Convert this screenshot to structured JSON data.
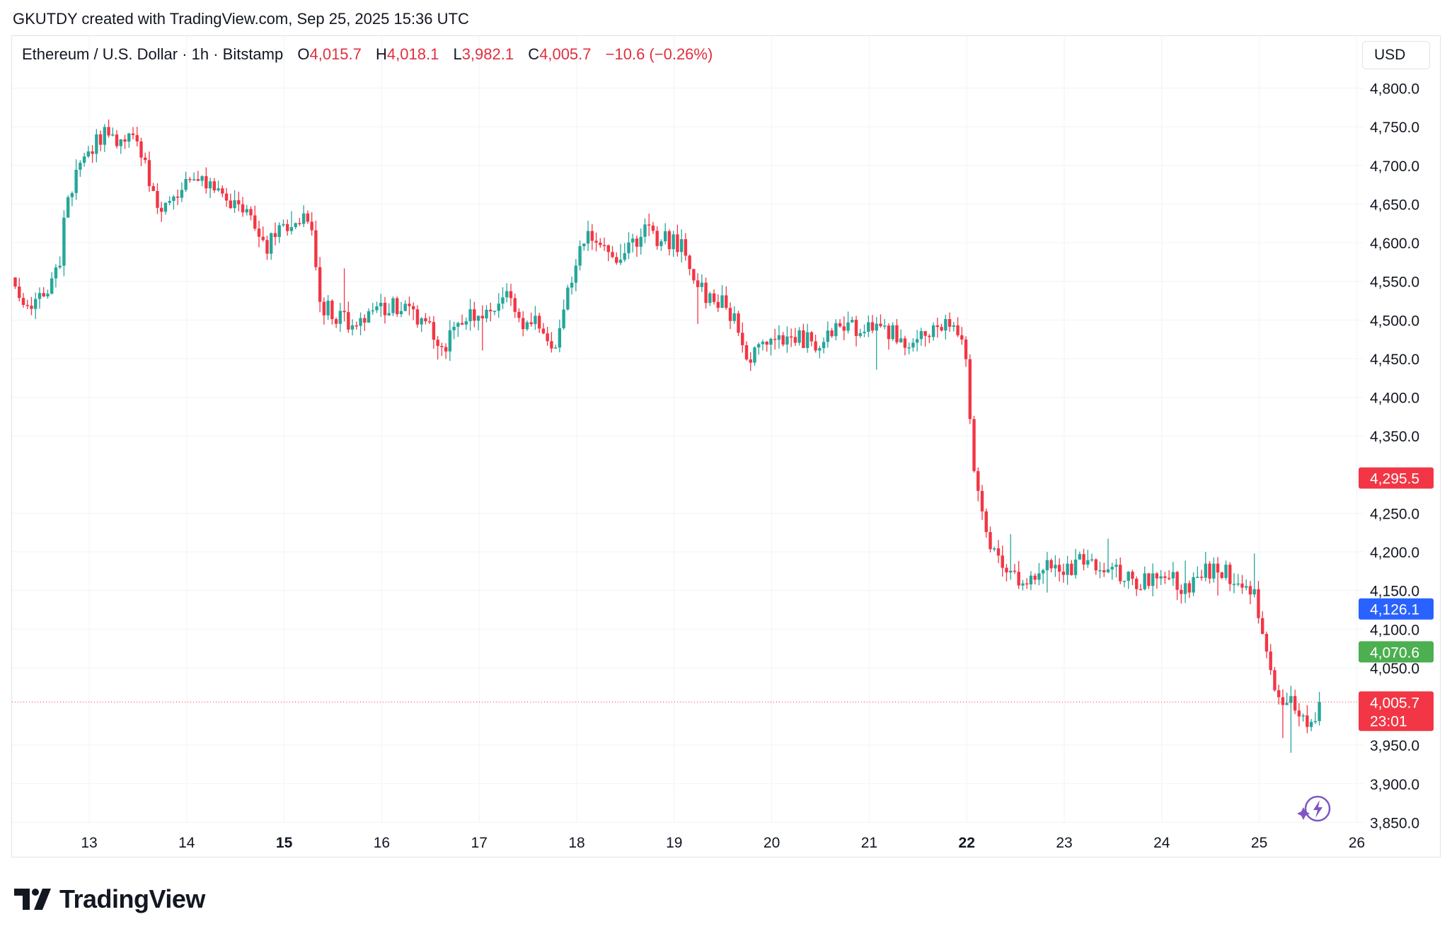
{
  "header": {
    "credit": "GKUTDY created with TradingView.com, Sep 25, 2025 15:36 UTC"
  },
  "legend": {
    "symbol": "Ethereum / U.S. Dollar · 1h · Bitstamp",
    "o_label": "O",
    "o_value": "4,015.7",
    "h_label": "H",
    "h_value": "4,018.1",
    "l_label": "L",
    "l_value": "3,982.1",
    "c_label": "C",
    "c_value": "4,005.7",
    "change": "−10.6 (−0.26%)"
  },
  "axis": {
    "currency": "USD"
  },
  "colors": {
    "up": "#26a69a",
    "down": "#f23645",
    "grid": "#f0f3fa",
    "axis_text": "#131722",
    "badge_red": "#f23645",
    "badge_blue": "#2962ff",
    "badge_green": "#4caf50"
  },
  "chart_data": {
    "type": "candlestick",
    "interval": "1h",
    "ylim": [
      3850,
      4830
    ],
    "y_ticks": [
      {
        "value": 4800,
        "label": "4,800.0"
      },
      {
        "value": 4750,
        "label": "4,750.0"
      },
      {
        "value": 4700,
        "label": "4,700.0"
      },
      {
        "value": 4650,
        "label": "4,650.0"
      },
      {
        "value": 4600,
        "label": "4,600.0"
      },
      {
        "value": 4550,
        "label": "4,550.0"
      },
      {
        "value": 4500,
        "label": "4,500.0"
      },
      {
        "value": 4450,
        "label": "4,450.0"
      },
      {
        "value": 4400,
        "label": "4,400.0"
      },
      {
        "value": 4350,
        "label": "4,350.0"
      },
      {
        "value": 4250,
        "label": "4,250.0"
      },
      {
        "value": 4200,
        "label": "4,200.0"
      },
      {
        "value": 4150,
        "label": "4,150.0"
      },
      {
        "value": 4100,
        "label": "4,100.0"
      },
      {
        "value": 4050,
        "label": "4,050.0"
      },
      {
        "value": 3950,
        "label": "3,950.0"
      },
      {
        "value": 3900,
        "label": "3,900.0"
      },
      {
        "value": 3850,
        "label": "3,850.0"
      }
    ],
    "x_ticks": [
      {
        "day": 13,
        "label": "13",
        "bold": false
      },
      {
        "day": 14,
        "label": "14",
        "bold": false
      },
      {
        "day": 15,
        "label": "15",
        "bold": true
      },
      {
        "day": 16,
        "label": "16",
        "bold": false
      },
      {
        "day": 17,
        "label": "17",
        "bold": false
      },
      {
        "day": 18,
        "label": "18",
        "bold": false
      },
      {
        "day": 19,
        "label": "19",
        "bold": false
      },
      {
        "day": 20,
        "label": "20",
        "bold": false
      },
      {
        "day": 21,
        "label": "21",
        "bold": false
      },
      {
        "day": 22,
        "label": "22",
        "bold": true
      },
      {
        "day": 23,
        "label": "23",
        "bold": false
      },
      {
        "day": 24,
        "label": "24",
        "bold": false
      },
      {
        "day": 25,
        "label": "25",
        "bold": false
      },
      {
        "day": 26,
        "label": "26",
        "bold": false
      }
    ],
    "price_badges": [
      {
        "value": 4295.5,
        "label": "4,295.5",
        "color": "#f23645"
      },
      {
        "value": 4126.1,
        "label": "4,126.1",
        "color": "#2962ff"
      },
      {
        "value": 4070.6,
        "label": "4,070.6",
        "color": "#4caf50"
      },
      {
        "value": 4005.7,
        "label": "4,005.7",
        "sub": "23:01",
        "color": "#f23645"
      }
    ],
    "last_price": 4005.7,
    "close_path": [
      [
        12.2,
        4555
      ],
      [
        12.35,
        4520
      ],
      [
        12.5,
        4525
      ],
      [
        12.6,
        4545
      ],
      [
        12.7,
        4580
      ],
      [
        12.75,
        4640
      ],
      [
        12.85,
        4680
      ],
      [
        13.0,
        4715
      ],
      [
        13.15,
        4745
      ],
      [
        13.3,
        4720
      ],
      [
        13.4,
        4735
      ],
      [
        13.5,
        4720
      ],
      [
        13.6,
        4690
      ],
      [
        13.7,
        4640
      ],
      [
        13.8,
        4650
      ],
      [
        13.95,
        4670
      ],
      [
        14.1,
        4685
      ],
      [
        14.25,
        4672
      ],
      [
        14.4,
        4660
      ],
      [
        14.55,
        4650
      ],
      [
        14.7,
        4615
      ],
      [
        14.8,
        4590
      ],
      [
        14.9,
        4610
      ],
      [
        15.0,
        4620
      ],
      [
        15.1,
        4610
      ],
      [
        15.2,
        4640
      ],
      [
        15.3,
        4600
      ],
      [
        15.35,
        4520
      ],
      [
        15.5,
        4510
      ],
      [
        15.7,
        4490
      ],
      [
        15.9,
        4510
      ],
      [
        16.1,
        4520
      ],
      [
        16.3,
        4505
      ],
      [
        16.5,
        4495
      ],
      [
        16.6,
        4460
      ],
      [
        16.8,
        4490
      ],
      [
        16.95,
        4510
      ],
      [
        17.1,
        4505
      ],
      [
        17.25,
        4540
      ],
      [
        17.4,
        4495
      ],
      [
        17.55,
        4500
      ],
      [
        17.7,
        4480
      ],
      [
        17.75,
        4455
      ],
      [
        17.85,
        4510
      ],
      [
        17.95,
        4560
      ],
      [
        18.05,
        4590
      ],
      [
        18.15,
        4610
      ],
      [
        18.25,
        4605
      ],
      [
        18.4,
        4585
      ],
      [
        18.55,
        4590
      ],
      [
        18.7,
        4620
      ],
      [
        18.85,
        4605
      ],
      [
        19.0,
        4600
      ],
      [
        19.1,
        4595
      ],
      [
        19.2,
        4550
      ],
      [
        19.35,
        4530
      ],
      [
        19.5,
        4525
      ],
      [
        19.65,
        4490
      ],
      [
        19.75,
        4450
      ],
      [
        19.9,
        4460
      ],
      [
        20.1,
        4470
      ],
      [
        20.3,
        4475
      ],
      [
        20.5,
        4470
      ],
      [
        20.7,
        4495
      ],
      [
        20.9,
        4490
      ],
      [
        21.1,
        4485
      ],
      [
        21.3,
        4480
      ],
      [
        21.4,
        4465
      ],
      [
        21.55,
        4475
      ],
      [
        21.7,
        4490
      ],
      [
        21.85,
        4490
      ],
      [
        21.95,
        4470
      ],
      [
        22.0,
        4440
      ],
      [
        22.05,
        4330
      ],
      [
        22.1,
        4300
      ],
      [
        22.2,
        4220
      ],
      [
        22.3,
        4190
      ],
      [
        22.45,
        4180
      ],
      [
        22.6,
        4150
      ],
      [
        22.75,
        4180
      ],
      [
        22.9,
        4190
      ],
      [
        23.05,
        4175
      ],
      [
        23.2,
        4190
      ],
      [
        23.35,
        4180
      ],
      [
        23.5,
        4180
      ],
      [
        23.65,
        4165
      ],
      [
        23.8,
        4160
      ],
      [
        23.95,
        4175
      ],
      [
        24.1,
        4170
      ],
      [
        24.2,
        4145
      ],
      [
        24.35,
        4170
      ],
      [
        24.5,
        4175
      ],
      [
        24.65,
        4175
      ],
      [
        24.8,
        4160
      ],
      [
        24.95,
        4150
      ],
      [
        25.05,
        4090
      ],
      [
        25.15,
        4030
      ],
      [
        25.25,
        3995
      ],
      [
        25.35,
        4005
      ],
      [
        25.45,
        3985
      ],
      [
        25.55,
        3975
      ],
      [
        25.6,
        4005
      ]
    ]
  }
}
